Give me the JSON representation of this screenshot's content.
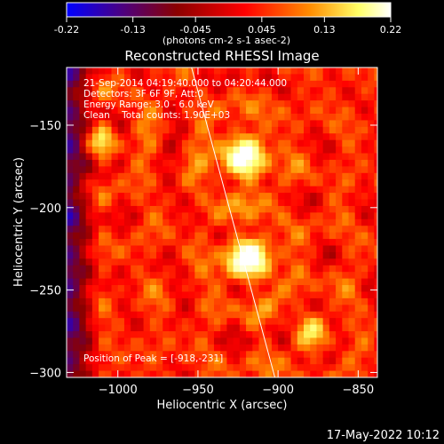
{
  "chart_data": {
    "type": "heatmap",
    "colorbar": {
      "ticks": [
        "-0.22",
        "-0.13",
        "-0.045",
        "0.045",
        "0.13",
        "0.22"
      ],
      "tick_values": [
        -0.22,
        -0.13,
        -0.045,
        0.045,
        0.13,
        0.22
      ],
      "range": [
        -0.22,
        0.22
      ],
      "unit_label": "(photons cm-2 s-1 asec-2)",
      "stops": [
        "#0000ff",
        "#4b0082",
        "#8b0000",
        "#ff0000",
        "#ff8c00",
        "#ffff66",
        "#ffffff"
      ]
    },
    "title": "Reconstructed RHESSI Image",
    "xlabel": "Heliocentric X (arcsec)",
    "ylabel": "Heliocentric Y (arcsec)",
    "xlim": [
      -1032,
      -838
    ],
    "ylim": [
      -303,
      -115
    ],
    "x_ticks": [
      -1000,
      -950,
      -900,
      -850
    ],
    "y_ticks": [
      -150,
      -200,
      -250,
      -300
    ],
    "x_tick_labels": [
      "−1000",
      "−950",
      "−900",
      "−850"
    ],
    "y_tick_labels": [
      "−150",
      "−200",
      "−250",
      "−300"
    ],
    "annotations": [
      "21-Sep-2014 04:19:40.000 to 04:20:44.000",
      "Detectors: 3F 6F 9F, Att:0",
      "Energy Range: 3.0 - 6.0 keV",
      "Clean    Total counts: 1.90E+03"
    ],
    "peak_label": "Position of Peak = [-918,-231]",
    "peak": [
      -918,
      -231
    ],
    "sources": [
      {
        "x": -918,
        "y": -231,
        "amp": 0.22,
        "sigma": 10
      },
      {
        "x": -922,
        "y": -170,
        "amp": 0.19,
        "sigma": 11
      },
      {
        "x": -1010,
        "y": -160,
        "amp": 0.1,
        "sigma": 8
      },
      {
        "x": -880,
        "y": -275,
        "amp": 0.09,
        "sigma": 9
      }
    ],
    "limb": [
      [
        -954,
        -115
      ],
      [
        -902,
        -303
      ]
    ],
    "grid": false
  },
  "footer": {
    "date_time": "17-May-2022 10:12"
  }
}
